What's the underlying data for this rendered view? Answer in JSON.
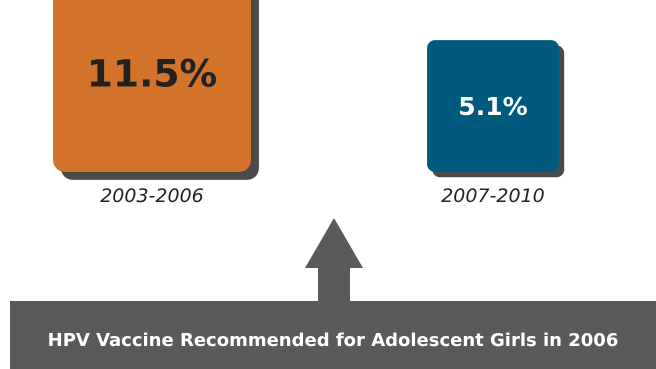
{
  "chart_data": {
    "type": "bar",
    "categories": [
      "2003-2006",
      "2007-2010"
    ],
    "values": [
      11.5,
      5.1
    ],
    "value_labels": [
      "11.5%",
      "5.1%"
    ],
    "unit": "%",
    "colors": [
      "#d4732c",
      "#005a7d"
    ],
    "annotation": "HPV Vaccine Recommended for Adolescent Girls in 2006",
    "title": "",
    "xlabel": "",
    "ylabel": "",
    "grid": false,
    "legend": "none"
  },
  "colors": {
    "banner": "#5a5a5a",
    "arrow": "#5a5a5a",
    "shadow": "#4a4a4a"
  }
}
